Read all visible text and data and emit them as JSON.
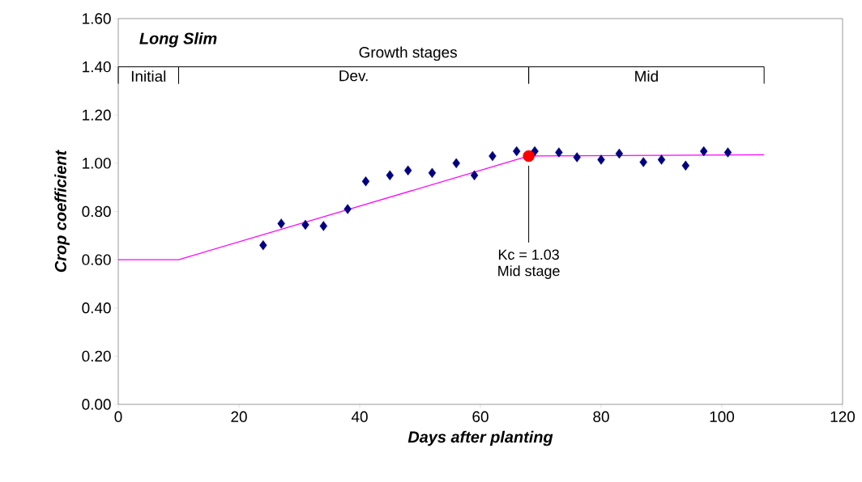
{
  "chart_data": {
    "type": "scatter",
    "title": "Long Slim",
    "xlabel": "Days after planting",
    "ylabel": "Crop coefficient",
    "xlim": [
      0,
      120
    ],
    "xticks": [
      0,
      20,
      40,
      60,
      80,
      100,
      120
    ],
    "ylim": [
      0,
      1.6
    ],
    "yticks": [
      {
        "value": 0,
        "label": "0.00"
      },
      {
        "value": 0.2,
        "label": "0.20"
      },
      {
        "value": 0.4,
        "label": "0.40"
      },
      {
        "value": 0.6,
        "label": "0.60"
      },
      {
        "value": 0.8,
        "label": "0.80"
      },
      {
        "value": 1.0,
        "label": "1.00"
      },
      {
        "value": 1.2,
        "label": "1.20"
      },
      {
        "value": 1.4,
        "label": "1.40"
      },
      {
        "value": 1.6,
        "label": "1.60"
      }
    ],
    "grid": false,
    "series": [
      {
        "marker": "diamond",
        "color": "#000080",
        "x": [
          24,
          27,
          31,
          34,
          38,
          41,
          45,
          48,
          52,
          56,
          59,
          62,
          66,
          69,
          73,
          76,
          80,
          83,
          87,
          90,
          94,
          97,
          101
        ],
        "values": [
          0.66,
          0.75,
          0.745,
          0.74,
          0.81,
          0.925,
          0.95,
          0.97,
          0.96,
          1.0,
          0.95,
          1.03,
          1.05,
          1.05,
          1.045,
          1.025,
          1.015,
          1.04,
          1.005,
          1.015,
          0.99,
          1.05,
          1.045
        ]
      },
      {
        "type": "line",
        "marker": "none",
        "color": "#ff00ff",
        "x": [
          0,
          10,
          68,
          107
        ],
        "values": [
          0.6,
          0.6,
          1.03,
          1.035
        ]
      },
      {
        "type": "scatter",
        "marker": "circle",
        "color": "#ff0000",
        "x": [
          68
        ],
        "values": [
          1.03
        ]
      },
      {
        "type": "line",
        "marker": "none",
        "color": "#000000",
        "x": [
          0,
          0,
          10,
          10,
          10,
          68,
          68,
          68,
          107,
          107
        ],
        "values": [
          1.33,
          1.4,
          1.4,
          1.33,
          1.4,
          1.4,
          1.33,
          1.4,
          1.4,
          1.33
        ]
      }
    ],
    "annotations": [
      "Growth stages",
      "Initial",
      "Dev.",
      "Mid",
      "Kc = 1.03",
      "Mid stage"
    ]
  }
}
